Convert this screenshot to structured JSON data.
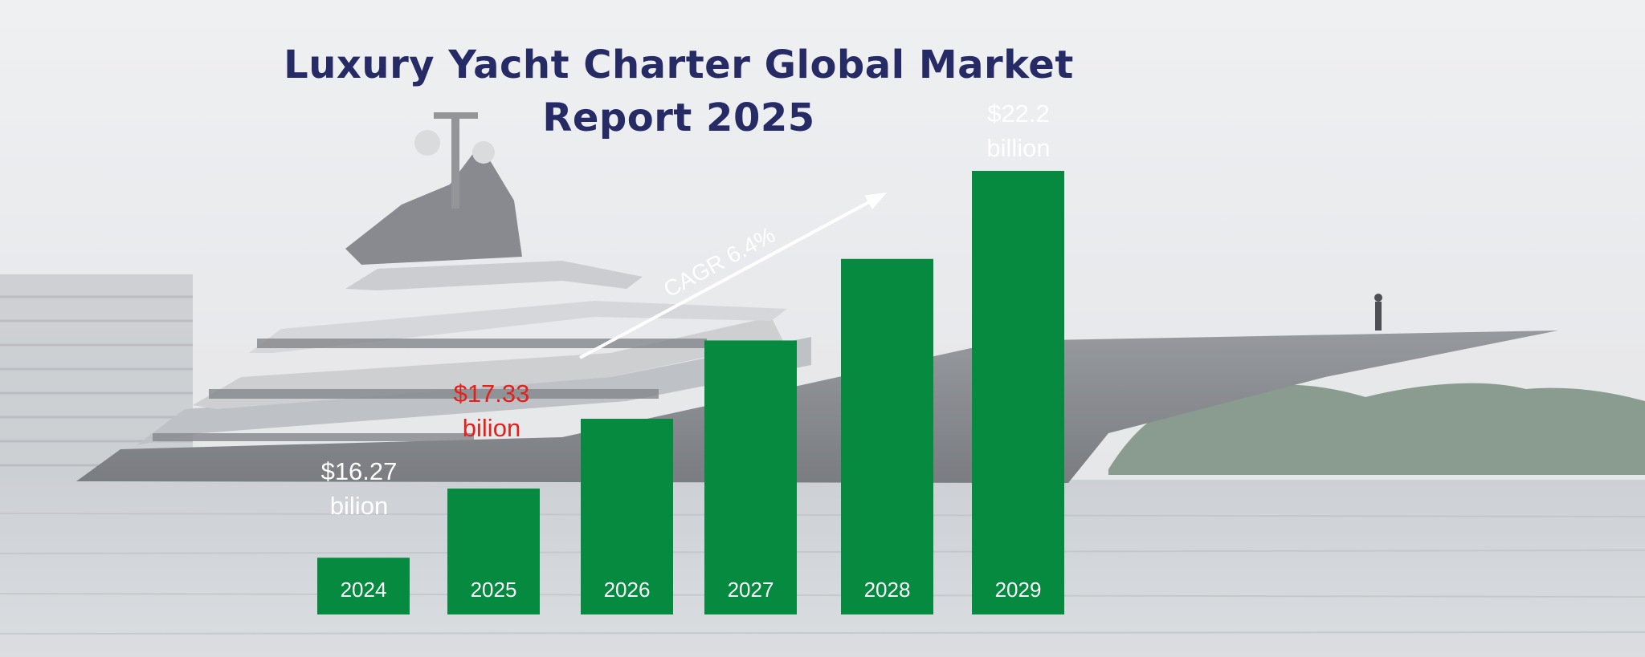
{
  "header": {
    "title_line1": "Luxury Yacht Charter Global Market",
    "title_line2": "Report 2025"
  },
  "colors": {
    "bar": "#058a3f",
    "title": "#262b66",
    "highlight_label": "#e3201b",
    "label": "#ffffff",
    "arrow": "#ffffff"
  },
  "chart_data": {
    "type": "bar",
    "title": "Luxury Yacht Charter Global Market Report 2025",
    "categories": [
      "2024",
      "2025",
      "2026",
      "2027",
      "2028",
      "2029"
    ],
    "values": [
      16.27,
      17.33,
      18.4,
      19.6,
      20.85,
      22.2
    ],
    "unit": "billion USD",
    "data_labels": [
      {
        "index": 0,
        "line1": "$16.27",
        "line2": "bilion",
        "color": "#ffffff"
      },
      {
        "index": 1,
        "line1": "$17.33",
        "line2": "bilion",
        "color": "#e3201b"
      },
      {
        "index": 5,
        "line1": "$22.2",
        "line2": "billion",
        "color": "#ffffff"
      }
    ],
    "annotation": {
      "text": "CAGR 6.4%",
      "from_index": 1,
      "to_index": 4
    },
    "xlabel": "",
    "ylabel": "",
    "ylim": [
      15.4,
      22.2
    ],
    "grid": false,
    "legend": "none"
  }
}
